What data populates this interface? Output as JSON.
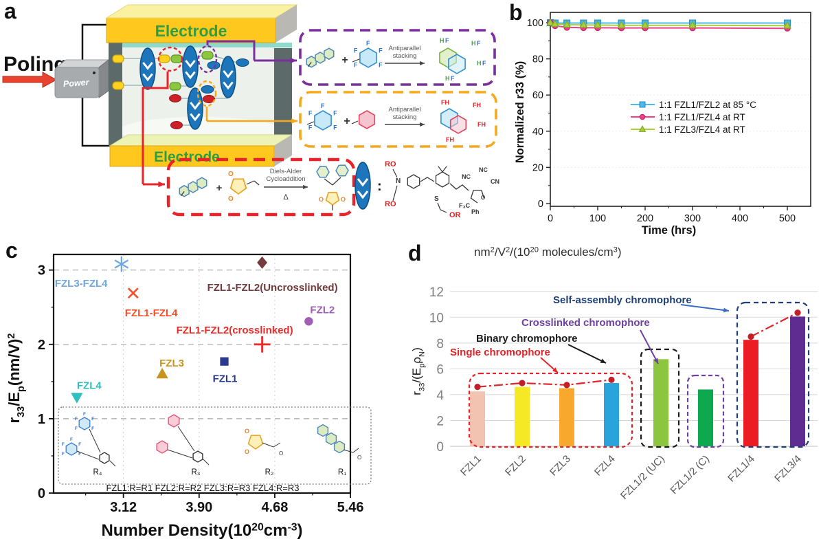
{
  "panel_labels": {
    "a": "a",
    "b": "b",
    "c": "c",
    "d": "d"
  },
  "panel_a": {
    "poling": "Poling",
    "power": "Power",
    "electrode_top": "Electrode",
    "electrode_bottom": "Electrode",
    "antiparallel_1": [
      "Antiparallel",
      "stacking"
    ],
    "antiparallel_2": [
      "Antiparallel",
      "stacking"
    ],
    "diels_alder": [
      "Diels-Alder",
      "Cycloaddition"
    ],
    "delta": "Δ",
    "plus": "+",
    "colon": ":",
    "atom_F": "F",
    "atom_H": "H",
    "atom_FH": "FH",
    "atom_O": "O",
    "atom_N": "N",
    "chromophore_labels": {
      "ro": "RO",
      "or": "OR",
      "n": "N",
      "s": "S",
      "nc": "NC",
      "cn": "CN",
      "f3c": "F₃C",
      "ph": "Ph",
      "o": "O"
    }
  },
  "chart_data": [
    {
      "panel": "b",
      "type": "line",
      "xlabel": "Time (hrs)",
      "ylabel": "Normalized r33 (%)",
      "xlim": [
        0,
        550
      ],
      "ylim": [
        0,
        105
      ],
      "xticks": [
        0,
        100,
        200,
        300,
        400,
        500
      ],
      "yticks": [
        0,
        20,
        40,
        60,
        80,
        100
      ],
      "x": [
        0,
        10,
        35,
        70,
        100,
        150,
        200,
        300,
        500
      ],
      "series": [
        {
          "name": "1:1 FZL1/FZL2 at 85 °C",
          "color": "#4eb8e9",
          "edge": "#2893c9",
          "marker": "square",
          "values": [
            100,
            99.8,
            99.8,
            99.8,
            99.8,
            99.8,
            99.8,
            99.8,
            99.8
          ]
        },
        {
          "name": "1:1 FZL1/FZL4 at RT",
          "color": "#ed3e8a",
          "edge": "#c9266f",
          "marker": "circle",
          "values": [
            100,
            98.3,
            97.4,
            97.2,
            97.2,
            97.1,
            97.1,
            97.1,
            96.9
          ]
        },
        {
          "name": "1:1 FZL3/FZL4 at RT",
          "color": "#aacf38",
          "edge": "#85a926",
          "marker": "triangle",
          "values": [
            100,
            99.3,
            98.9,
            98.8,
            98.7,
            98.6,
            98.6,
            98.6,
            98.4
          ]
        }
      ],
      "legend_position": "center-right"
    },
    {
      "panel": "c",
      "type": "scatter",
      "xlabel_parts": [
        {
          "t": "Number Density(10"
        },
        {
          "t": "20",
          "sup": true
        },
        {
          "t": "cm"
        },
        {
          "t": "-3",
          "sup": true
        },
        {
          "t": ")"
        }
      ],
      "ylabel_parts": [
        {
          "t": "r"
        },
        {
          "t": "33",
          "sub": true
        },
        {
          "t": "/E"
        },
        {
          "t": "p",
          "sub": true
        },
        {
          "t": "(nm/V)"
        },
        {
          "t": "2",
          "sup": true
        }
      ],
      "xlim": [
        2.4,
        5.46
      ],
      "ylim": [
        0,
        3.21
      ],
      "xtick_labels": [
        "3.12",
        "3.90",
        "4.68",
        "5.46"
      ],
      "xtick_values": [
        3.12,
        3.9,
        4.68,
        5.46
      ],
      "yticks": [
        0,
        1,
        2,
        3
      ],
      "grid": "dashed",
      "points": [
        {
          "label": "FZL3-FZL4",
          "x": 3.1,
          "y": 3.08,
          "marker": "asterisk",
          "color": "#6fa8dc"
        },
        {
          "label": "FZL1-FZL4",
          "x": 3.22,
          "y": 2.69,
          "marker": "x",
          "color": "#f4502a"
        },
        {
          "label": "FZL1-FZL2(Uncrosslinked)",
          "x": 4.55,
          "y": 3.1,
          "marker": "diamond",
          "color": "#733b3b"
        },
        {
          "label": "FZL2",
          "x": 5.03,
          "y": 2.31,
          "marker": "circle",
          "color": "#a05eb5"
        },
        {
          "label": "FZL1-FZL2(crosslinked)",
          "x": 4.55,
          "y": 2.0,
          "marker": "plus",
          "color": "#ee2b2b"
        },
        {
          "label": "FZL1",
          "x": 4.16,
          "y": 1.77,
          "marker": "square",
          "color": "#2b3990"
        },
        {
          "label": "FZL3",
          "x": 3.52,
          "y": 1.6,
          "marker": "triangle-up",
          "color": "#c8941e"
        },
        {
          "label": "FZL4",
          "x": 2.64,
          "y": 1.29,
          "marker": "triangle-down",
          "color": "#2fbfbf"
        }
      ],
      "inset": {
        "r_labels": [
          "R₄",
          "R₃",
          "R₂",
          "R₁"
        ],
        "mapping": "FZL1:R=R1  FZL2:R=R2  FZL3:R=R3  FZL4:R=R3"
      }
    },
    {
      "panel": "d",
      "type": "bar",
      "title_parts": [
        {
          "t": "nm"
        },
        {
          "t": "2",
          "sup": true
        },
        {
          "t": "/V"
        },
        {
          "t": "2",
          "sup": true
        },
        {
          "t": "/(10"
        },
        {
          "t": "20",
          "sup": true
        },
        {
          "t": " molecules/cm"
        },
        {
          "t": "3",
          "sup": true
        },
        {
          "t": ")"
        }
      ],
      "ylabel_parts": [
        {
          "t": "r"
        },
        {
          "t": "33",
          "sub": true
        },
        {
          "t": "/(E"
        },
        {
          "t": "p",
          "sub": true
        },
        {
          "t": "ρ"
        },
        {
          "t": "N",
          "sub": true
        },
        {
          "t": ")"
        }
      ],
      "ylim": [
        0,
        12
      ],
      "yticks": [
        0,
        2,
        4,
        6,
        8,
        10,
        12
      ],
      "categories": [
        "FZL1",
        "FZL2",
        "FZL3",
        "FZL4",
        "FZL1/2  (UC)",
        "FZL1/2  (C)",
        "FZL1/4",
        "FZL3/4"
      ],
      "values": [
        4.25,
        4.6,
        4.5,
        4.9,
        6.75,
        4.4,
        8.25,
        10.05
      ],
      "colors": [
        "#f2c3b0",
        "#f5e926",
        "#f8a82c",
        "#29a3dc",
        "#8cc63e",
        "#0ca94e",
        "#ec1c24",
        "#5f2c91"
      ],
      "line_series": {
        "color": "#e1242a",
        "dot_color": "#c21f26",
        "values": [
          4.6,
          4.9,
          4.75,
          5.15,
          null,
          null,
          8.5,
          10.35
        ]
      },
      "groups": [
        {
          "label": "Single chromophore",
          "color": "#e1242a",
          "from": 0,
          "to": 3
        },
        {
          "label": "Binary chromophore",
          "color": "#1a1a1a",
          "from": 4,
          "to": 4
        },
        {
          "label": "Crosslinked chromophore",
          "color": "#7040a0",
          "from": 5,
          "to": 5
        },
        {
          "label": "Self-assembly chromophore",
          "color": "#1f3f77",
          "from": 6,
          "to": 7
        }
      ]
    }
  ]
}
